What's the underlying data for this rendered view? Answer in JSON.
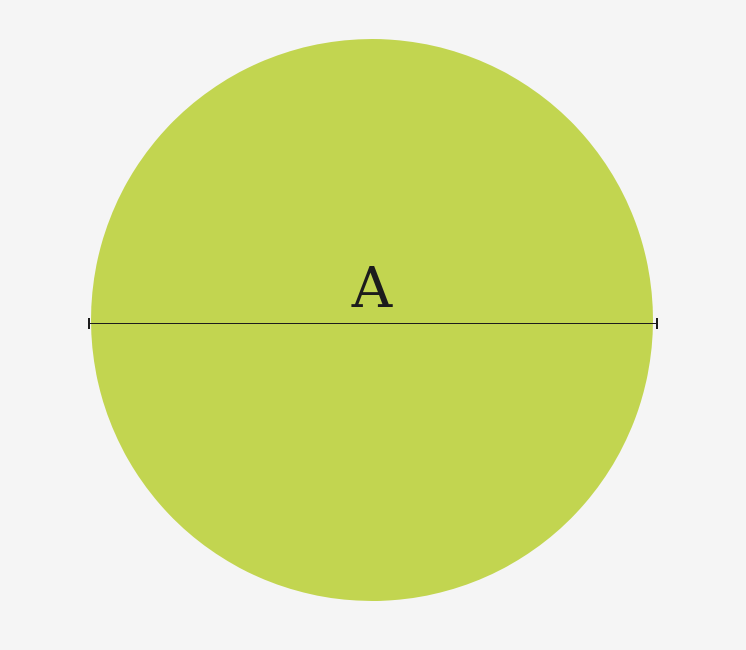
{
  "diagram": {
    "label": "A"
  },
  "colors": {
    "background": "#f5f5f5",
    "circle_fill": "#c2d550",
    "line": "#1c1c1c",
    "label_text": "#1c1c1c"
  }
}
